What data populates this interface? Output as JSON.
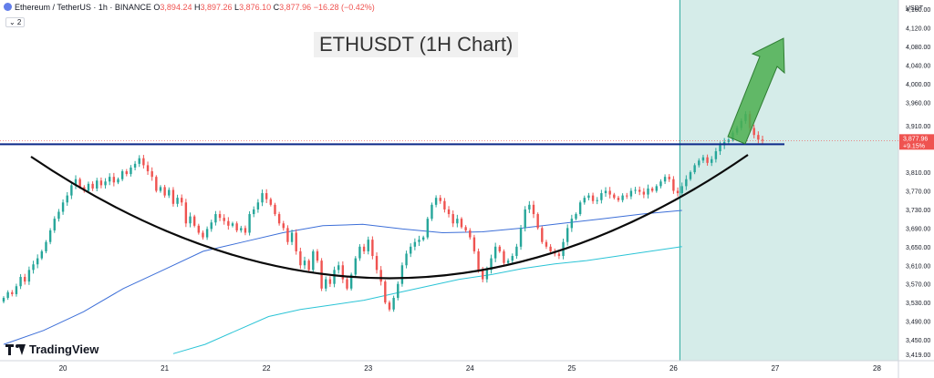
{
  "header": {
    "symbol_text": "Ethereum / TetherUS · 1h · BINANCE",
    "o_label": "O",
    "o_value": "3,894.24",
    "h_label": "H",
    "h_value": "3,897.26",
    "l_label": "L",
    "l_value": "3,876.10",
    "c_label": "C",
    "c_value": "3,877.96",
    "change": "−16.28 (−0.42%)",
    "legend_toggle": "⌄ 2"
  },
  "title": "ETHUSDT (1H Chart)",
  "branding": "TradingView",
  "colors": {
    "up": "#26a69a",
    "down": "#ef5350",
    "ma_fast": "#3d6fd8",
    "ma_slow": "#2bc4d6",
    "resistance": "#0d2a8a",
    "cup_curve": "#0a0a0a",
    "arrow": "#4caf50",
    "highlight_zone": "#d5ece9"
  },
  "chart_data": {
    "type": "candlestick",
    "title": "ETHUSDT (1H Chart)",
    "y_axis_unit": "USDT",
    "y_ticks": [
      "4,160.00",
      "4,120.00",
      "4,080.00",
      "4,040.00",
      "4,000.00",
      "3,960.00",
      "3,910.00",
      "3,810.00",
      "3,770.00",
      "3,730.00",
      "3,690.00",
      "3,650.00",
      "3,610.00",
      "3,570.00",
      "3,530.00",
      "3,490.00",
      "3,450.00",
      "3,419.00"
    ],
    "ylim": [
      3405,
      4180
    ],
    "x_day_labels": [
      "20",
      "21",
      "22",
      "23",
      "24",
      "25",
      "26",
      "27",
      "28"
    ],
    "day_start_index": 14,
    "candles_per_day": 24,
    "candles_close": [
      3540,
      3552,
      3548,
      3565,
      3585,
      3575,
      3600,
      3612,
      3625,
      3640,
      3660,
      3685,
      3710,
      3725,
      3745,
      3760,
      3782,
      3795,
      3778,
      3770,
      3785,
      3775,
      3792,
      3782,
      3790,
      3800,
      3788,
      3795,
      3812,
      3806,
      3820,
      3828,
      3840,
      3825,
      3812,
      3800,
      3770,
      3778,
      3760,
      3772,
      3742,
      3755,
      3745,
      3700,
      3715,
      3695,
      3680,
      3670,
      3688,
      3702,
      3720,
      3712,
      3705,
      3695,
      3700,
      3685,
      3690,
      3680,
      3720,
      3730,
      3745,
      3765,
      3752,
      3740,
      3720,
      3700,
      3690,
      3660,
      3680,
      3640,
      3610,
      3620,
      3600,
      3640,
      3620,
      3560,
      3580,
      3570,
      3600,
      3610,
      3580,
      3560,
      3590,
      3625,
      3650,
      3640,
      3665,
      3630,
      3600,
      3575,
      3530,
      3515,
      3540,
      3570,
      3610,
      3635,
      3650,
      3660,
      3665,
      3670,
      3710,
      3740,
      3755,
      3748,
      3730,
      3720,
      3700,
      3710,
      3692,
      3685,
      3670,
      3640,
      3600,
      3580,
      3600,
      3625,
      3650,
      3640,
      3615,
      3620,
      3630,
      3650,
      3690,
      3730,
      3740,
      3720,
      3690,
      3660,
      3650,
      3640,
      3635,
      3630,
      3660,
      3690,
      3710,
      3720,
      3745,
      3755,
      3760,
      3748,
      3750,
      3765,
      3770,
      3762,
      3755,
      3750,
      3760,
      3758,
      3770,
      3772,
      3768,
      3762,
      3775,
      3770,
      3780,
      3790,
      3800,
      3795,
      3770,
      3765,
      3780,
      3795,
      3810,
      3825,
      3835,
      3842,
      3830,
      3838,
      3855,
      3868,
      3875,
      3880,
      3895,
      3905,
      3920,
      3935,
      3905,
      3890,
      3880,
      3878
    ],
    "ma_fast": [
      3440,
      3470,
      3510,
      3560,
      3600,
      3640,
      3660,
      3680,
      3695,
      3698,
      3688,
      3680,
      3682,
      3690,
      3700,
      3710,
      3720,
      3728
    ],
    "ma_slow": [
      3420,
      3440,
      3470,
      3500,
      3515,
      3525,
      3535,
      3550,
      3565,
      3580,
      3590,
      3603,
      3613,
      3620,
      3630,
      3640,
      3650
    ],
    "resistance_level": 3870,
    "last_price_label": "3,877.96",
    "last_change_label": "+9.15%",
    "last_price": 3877.96,
    "cup_bottom": 3505
  }
}
